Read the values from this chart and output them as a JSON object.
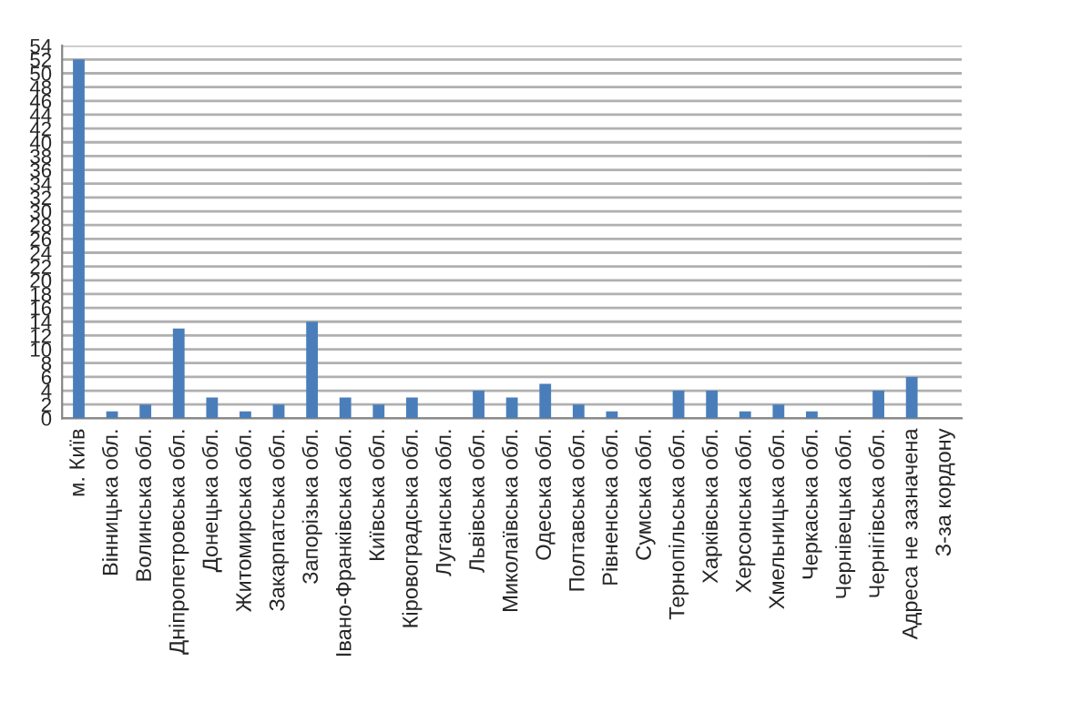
{
  "chart_data": {
    "type": "bar",
    "categories": [
      "м. Київ",
      "Вінницька обл.",
      "Волинська обл.",
      "Дніпропетровська обл.",
      "Донецька обл.",
      "Житомирська обл.",
      "Закарпатська обл.",
      "Запорізька обл.",
      "Івано-Франківська обл.",
      "Київська обл.",
      "Кіровоградська обл.",
      "Луганська обл.",
      "Львівська обл.",
      "Миколаївська обл.",
      "Одеська обл.",
      "Полтавська обл.",
      "Рівненська обл.",
      "Сумська обл.",
      "Тернопільська обл.",
      "Харківська обл.",
      "Херсонська обл.",
      "Хмельницька обл.",
      "Черкаська обл.",
      "Чернівецька обл.",
      "Чернігівська обл.",
      "Адреса не зазначена",
      "З-за кордону"
    ],
    "values": [
      52,
      1,
      2,
      13,
      3,
      1,
      2,
      14,
      3,
      2,
      3,
      0,
      4,
      3,
      5,
      2,
      1,
      0,
      4,
      4,
      1,
      2,
      1,
      0,
      4,
      6,
      0
    ],
    "color": "#4a7ebb",
    "ylim": [
      0,
      54
    ],
    "yticks": [
      0,
      2,
      4,
      6,
      8,
      10,
      12,
      14,
      16,
      18,
      20,
      22,
      24,
      26,
      28,
      30,
      32,
      34,
      36,
      38,
      40,
      42,
      44,
      46,
      48,
      50,
      52,
      54
    ],
    "grid": "y",
    "legend": false
  }
}
